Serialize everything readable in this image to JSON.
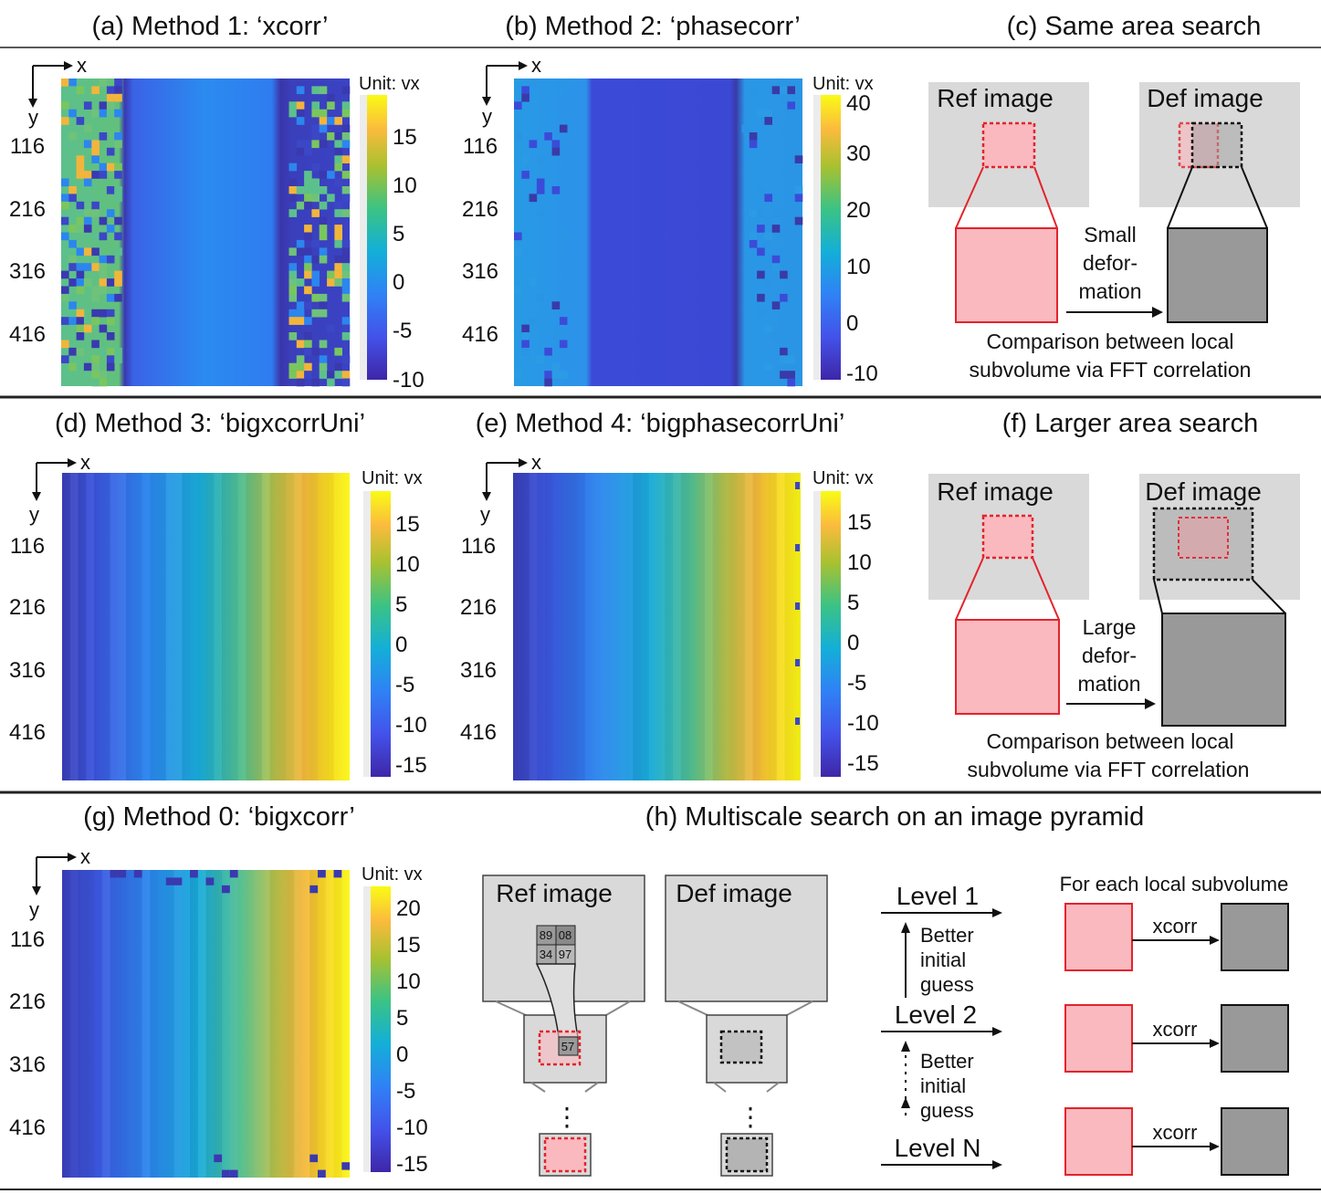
{
  "panels": {
    "a": {
      "title": "(a) Method 1: ‘xcorr’",
      "unit": "Unit: vx",
      "cbar_ticks": [
        "15",
        "10",
        "5",
        "0",
        "-5",
        "-10"
      ],
      "y_ticks": [
        "116",
        "216",
        "316",
        "416"
      ],
      "x_axis": "x",
      "y_axis": "y"
    },
    "b": {
      "title": "(b) Method 2: ‘phasecorr’",
      "unit": "Unit: vx",
      "cbar_ticks": [
        "40",
        "30",
        "20",
        "10",
        "0",
        "-10"
      ],
      "y_ticks": [
        "116",
        "216",
        "316",
        "416"
      ],
      "x_axis": "x",
      "y_axis": "y"
    },
    "c": {
      "title": "(c) Same area search",
      "ref": "Ref image",
      "def": "Def image",
      "arrow": [
        "Small",
        "defor-",
        "mation"
      ],
      "caption": [
        "Comparison between local",
        "subvolume via FFT correlation"
      ]
    },
    "d": {
      "title": "(d) Method 3: ‘bigxcorrUni’",
      "unit": "Unit: vx",
      "cbar_ticks": [
        "15",
        "10",
        "5",
        "0",
        "-5",
        "-10",
        "-15"
      ],
      "y_ticks": [
        "116",
        "216",
        "316",
        "416"
      ],
      "x_axis": "x",
      "y_axis": "y"
    },
    "e": {
      "title": "(e) Method 4: ‘bigphasecorrUni’",
      "unit": "Unit: vx",
      "cbar_ticks": [
        "15",
        "10",
        "5",
        "0",
        "-5",
        "-10",
        "-15"
      ],
      "y_ticks": [
        "116",
        "216",
        "316",
        "416"
      ],
      "x_axis": "x",
      "y_axis": "y"
    },
    "f": {
      "title": "(f) Larger area search",
      "ref": "Ref image",
      "def": "Def image",
      "arrow": [
        "Large",
        "defor-",
        "mation"
      ],
      "caption": [
        "Comparison between local",
        "subvolume via FFT correlation"
      ]
    },
    "g": {
      "title": "(g) Method 0: ‘bigxcorr’",
      "unit": "Unit: vx",
      "cbar_ticks": [
        "20",
        "15",
        "10",
        "5",
        "0",
        "-5",
        "-10",
        "-15"
      ],
      "y_ticks": [
        "116",
        "216",
        "316",
        "416"
      ],
      "x_axis": "x",
      "y_axis": "y"
    },
    "h": {
      "title": "(h) Multiscale search on an image pyramid",
      "ref": "Ref image",
      "def": "Def image",
      "cells": [
        "89",
        "08",
        "34",
        "97"
      ],
      "child": "57",
      "levels": [
        "Level 1",
        "Level 2",
        "Level N"
      ],
      "better": [
        "Better",
        "initial",
        "guess"
      ],
      "subvol": "For each local subvolume",
      "xcorr": "xcorr",
      "dots": "⋮"
    }
  },
  "colors": {
    "ref_fill": "#f9b9bf",
    "ref_stroke": "#e3232b",
    "def_fill": "#999999",
    "image_bg": "#d9d9d9"
  }
}
